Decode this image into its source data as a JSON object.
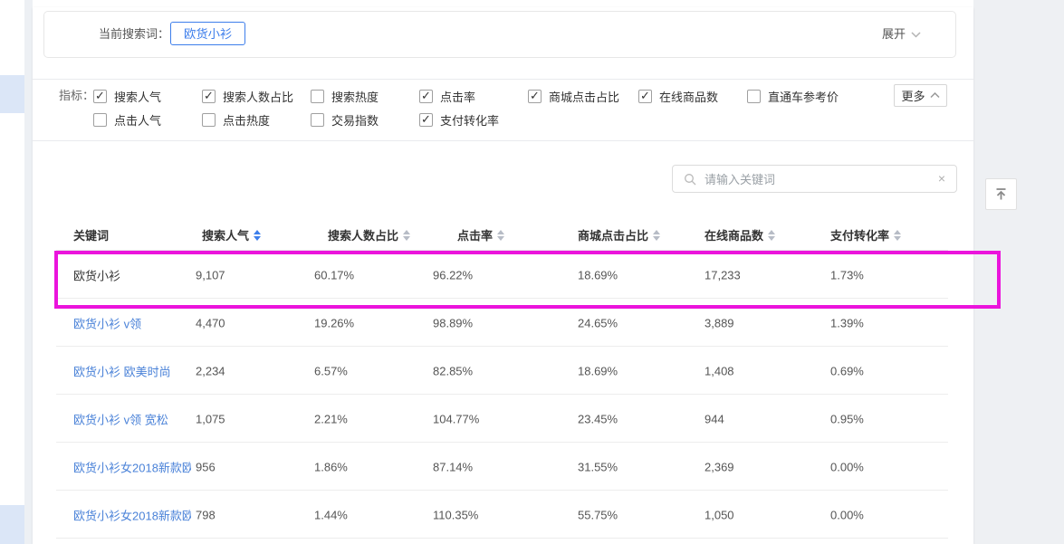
{
  "page": {
    "topbar": {
      "label": "当前搜索词：",
      "keyword": "欧货小衫",
      "expand_label": "展开"
    },
    "metrics": {
      "caption": "指标：",
      "row1": [
        {
          "label": "搜索人气",
          "checked": true
        },
        {
          "label": "搜索人数占比",
          "checked": true
        },
        {
          "label": "搜索热度",
          "checked": false
        },
        {
          "label": "点击率",
          "checked": true
        },
        {
          "label": "商城点击占比",
          "checked": true
        },
        {
          "label": "在线商品数",
          "checked": true
        },
        {
          "label": "直通车参考价",
          "checked": false
        }
      ],
      "row2": [
        {
          "label": "点击人气",
          "checked": false
        },
        {
          "label": "点击热度",
          "checked": false
        },
        {
          "label": "交易指数",
          "checked": false
        },
        {
          "label": "支付转化率",
          "checked": true
        }
      ],
      "more_label": "更多"
    },
    "search": {
      "placeholder": "请输入关键词",
      "clear_icon": "×"
    },
    "table": {
      "columns": [
        {
          "label": "关键词",
          "sortable": false,
          "active": false
        },
        {
          "label": "搜索人气",
          "sortable": true,
          "active": true
        },
        {
          "label": "搜索人数占比",
          "sortable": true,
          "active": false
        },
        {
          "label": "点击率",
          "sortable": true,
          "active": false
        },
        {
          "label": "商城点击占比",
          "sortable": true,
          "active": false
        },
        {
          "label": "在线商品数",
          "sortable": true,
          "active": false
        },
        {
          "label": "支付转化率",
          "sortable": true,
          "active": false
        }
      ],
      "rows": [
        {
          "keyword": "欧货小衫",
          "link": false,
          "highlighted": true,
          "values": [
            "9,107",
            "60.17%",
            "96.22%",
            "18.69%",
            "17,233",
            "1.73%"
          ]
        },
        {
          "keyword": "欧货小衫 v领",
          "link": true,
          "highlighted": false,
          "values": [
            "4,470",
            "19.26%",
            "98.89%",
            "24.65%",
            "3,889",
            "1.39%"
          ]
        },
        {
          "keyword": "欧货小衫 欧美时尚",
          "link": true,
          "highlighted": false,
          "values": [
            "2,234",
            "6.57%",
            "82.85%",
            "18.69%",
            "1,408",
            "0.69%"
          ]
        },
        {
          "keyword": "欧货小衫 v领 宽松",
          "link": true,
          "highlighted": false,
          "values": [
            "1,075",
            "2.21%",
            "104.77%",
            "23.45%",
            "944",
            "0.95%"
          ]
        },
        {
          "keyword": "欧货小衫女2018新款欧...",
          "link": true,
          "highlighted": false,
          "values": [
            "956",
            "1.86%",
            "87.14%",
            "31.55%",
            "2,369",
            "0.00%"
          ]
        },
        {
          "keyword": "欧货小衫女2018新款欧...",
          "link": true,
          "highlighted": false,
          "values": [
            "798",
            "1.44%",
            "110.35%",
            "55.75%",
            "1,050",
            "0.00%"
          ]
        }
      ]
    },
    "colors": {
      "accent_blue": "#3d7eeb",
      "link_blue": "#4a82d8",
      "highlight_magenta": "#eb14dc"
    }
  }
}
